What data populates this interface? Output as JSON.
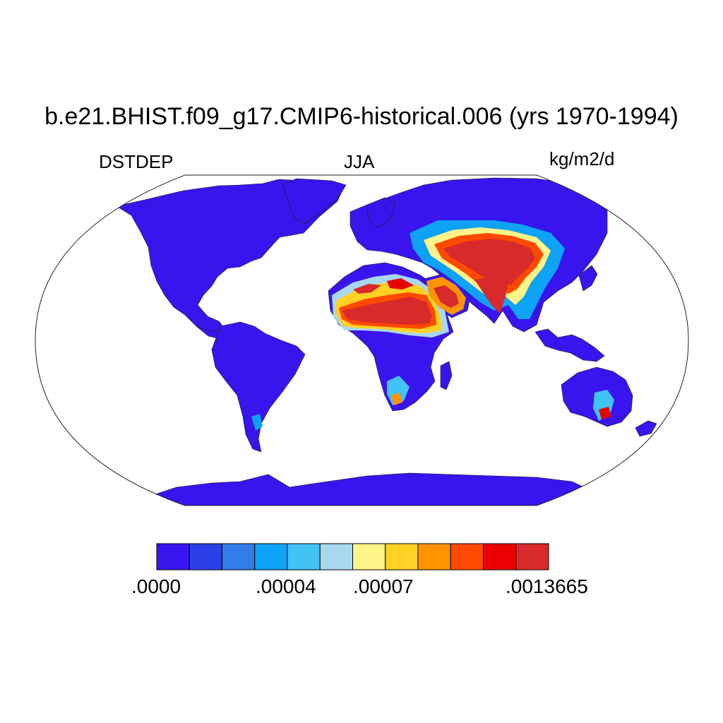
{
  "title": "b.e21.BHIST.f09_g17.CMIP6-historical.006 (yrs 1970-1994)",
  "left_subtitle": "DSTDEP",
  "center_subtitle": "JJA",
  "right_subtitle": "kg/m2/d",
  "colorbar": {
    "colors": [
      "#3a14ee",
      "#2a3fe6",
      "#327ce8",
      "#0ea3f6",
      "#42c2f5",
      "#a8d8ef",
      "#fff48a",
      "#ffd122",
      "#ff9400",
      "#ff4a00",
      "#ea0000",
      "#d82a2a"
    ],
    "labels": [
      ".0000",
      ".00004",
      ".00007",
      ".0013665"
    ]
  },
  "map": {
    "projection": "Robinson",
    "land_color": "#3a14ee",
    "ocean_color": "#ffffff",
    "regions": {
      "north-america": "DSTDEP lowest class",
      "south-america": "DSTDEP lowest class",
      "antarctica": "DSTDEP lowest class",
      "sahara": "DSTDEP highest class",
      "arabia": "DSTDEP highest class",
      "central-asia": "DSTDEP highest class",
      "south-asia": "DSTDEP highest class",
      "australia": "DSTDEP lowest class with local maxima"
    }
  }
}
